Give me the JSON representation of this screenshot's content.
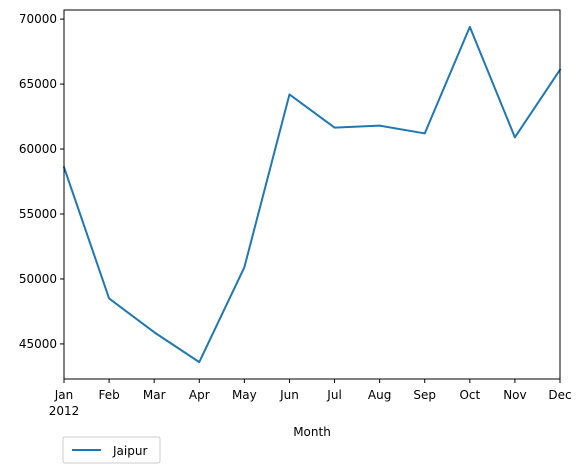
{
  "chart_data": {
    "type": "line",
    "title": "",
    "xlabel": "Month",
    "ylabel": "",
    "x": [
      "Jan",
      "Feb",
      "Mar",
      "Apr",
      "May",
      "Jun",
      "Jul",
      "Aug",
      "Sep",
      "Oct",
      "Nov",
      "Dec"
    ],
    "x_year_label": "2012",
    "series": [
      {
        "name": "Jaipur",
        "color": "#1f77b4",
        "values": [
          58600,
          48500,
          45900,
          43600,
          50900,
          64200,
          61650,
          61800,
          61200,
          69400,
          60900,
          66100
        ]
      }
    ],
    "ylim": [
      42300,
      70700
    ],
    "yticks": [
      45000,
      50000,
      55000,
      60000,
      65000,
      70000
    ],
    "grid": false,
    "legend_placement": "bottom-left, below plot"
  }
}
